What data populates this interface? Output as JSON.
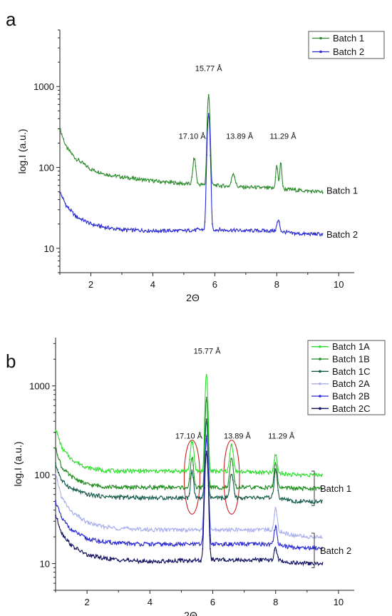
{
  "chart_data": [
    {
      "type": "line",
      "panel_label": "a",
      "xlabel": "2Θ",
      "ylabel": "log.I (a.u.)",
      "xlim": [
        1,
        10.5
      ],
      "ylim": [
        5,
        5000
      ],
      "y_scale": "log",
      "x_ticks": [
        2,
        4,
        6,
        8,
        10
      ],
      "y_ticks": [
        10,
        100,
        1000
      ],
      "grid": false,
      "legend_position": "top-right",
      "series": [
        {
          "name": "Batch 1",
          "color": "#2e8b2e",
          "marker": "dot",
          "base": [
            [
              1.0,
              300
            ],
            [
              1.2,
              180
            ],
            [
              1.5,
              130
            ],
            [
              2.0,
              95
            ],
            [
              2.5,
              82
            ],
            [
              3.0,
              76
            ],
            [
              4.0,
              68
            ],
            [
              5.0,
              63
            ],
            [
              6.0,
              60
            ],
            [
              7.0,
              57
            ],
            [
              8.0,
              55
            ],
            [
              9.0,
              51
            ],
            [
              9.5,
              50
            ]
          ],
          "peaks": [
            {
              "x": 5.34,
              "height": 130,
              "width": 0.06
            },
            {
              "x": 5.8,
              "height": 780,
              "width": 0.05
            },
            {
              "x": 6.6,
              "height": 85,
              "width": 0.07
            },
            {
              "x": 8.0,
              "height": 105,
              "width": 0.045
            },
            {
              "x": 8.13,
              "height": 112,
              "width": 0.045
            }
          ]
        },
        {
          "name": "Batch 2",
          "color": "#2a2ad0",
          "marker": "dot",
          "base": [
            [
              1.0,
              50
            ],
            [
              1.2,
              34
            ],
            [
              1.5,
              25
            ],
            [
              2.0,
              20
            ],
            [
              2.5,
              18
            ],
            [
              3.0,
              17
            ],
            [
              4.0,
              16.5
            ],
            [
              5.0,
              16.5
            ],
            [
              5.5,
              17
            ],
            [
              6.0,
              17
            ],
            [
              7.0,
              16.5
            ],
            [
              8.0,
              16.5
            ],
            [
              8.5,
              15.3
            ],
            [
              9.0,
              15
            ],
            [
              9.5,
              15
            ]
          ],
          "peaks": [
            {
              "x": 5.8,
              "height": 440,
              "width": 0.055
            },
            {
              "x": 8.05,
              "height": 22,
              "width": 0.06
            }
          ]
        }
      ],
      "annotations": [
        {
          "text": "15.77 Å",
          "x": 5.8,
          "y": 1550
        },
        {
          "text": "17.10 Å",
          "x": 5.27,
          "y": 225
        },
        {
          "text": "13.89 Å",
          "x": 6.8,
          "y": 225
        },
        {
          "text": "11.29 Å",
          "x": 8.2,
          "y": 225
        }
      ],
      "right_labels": [
        {
          "text": "Batch 1",
          "y": 52
        },
        {
          "text": "Batch 2",
          "y": 15
        }
      ]
    },
    {
      "type": "line",
      "panel_label": "b",
      "xlabel": "2Θ",
      "ylabel": "log.I (a.u.)",
      "xlim": [
        1,
        10.5
      ],
      "ylim": [
        5,
        3500
      ],
      "y_scale": "log",
      "x_ticks": [
        2,
        4,
        6,
        8,
        10
      ],
      "y_ticks": [
        10,
        100,
        1000
      ],
      "grid": false,
      "legend_position": "top-right",
      "series": [
        {
          "name": "Batch 1A",
          "color": "#33dd33",
          "marker": "dot",
          "base": [
            [
              1.0,
              330
            ],
            [
              1.2,
              200
            ],
            [
              1.5,
              150
            ],
            [
              2.0,
              120
            ],
            [
              2.5,
              112
            ],
            [
              3.0,
              110
            ],
            [
              4.0,
              110
            ],
            [
              5.0,
              110
            ],
            [
              6.0,
              110
            ],
            [
              7.0,
              108
            ],
            [
              8.0,
              105
            ],
            [
              8.6,
              100
            ],
            [
              9.0,
              100
            ],
            [
              9.5,
              100
            ]
          ],
          "peaks": [
            {
              "x": 5.34,
              "height": 240,
              "width": 0.07
            },
            {
              "x": 5.8,
              "height": 1400,
              "width": 0.05
            },
            {
              "x": 6.6,
              "height": 220,
              "width": 0.07
            },
            {
              "x": 8.0,
              "height": 170,
              "width": 0.06
            }
          ]
        },
        {
          "name": "Batch 1B",
          "color": "#1e8c1e",
          "marker": "dot",
          "base": [
            [
              1.0,
              200
            ],
            [
              1.2,
              120
            ],
            [
              1.5,
              95
            ],
            [
              2.0,
              78
            ],
            [
              2.5,
              74
            ],
            [
              3.0,
              72
            ],
            [
              4.0,
              72
            ],
            [
              5.0,
              72
            ],
            [
              6.0,
              72
            ],
            [
              7.0,
              72
            ],
            [
              8.0,
              72
            ],
            [
              8.6,
              70
            ],
            [
              9.0,
              70
            ],
            [
              9.5,
              70
            ]
          ],
          "peaks": [
            {
              "x": 5.34,
              "height": 160,
              "width": 0.06
            },
            {
              "x": 5.8,
              "height": 720,
              "width": 0.05
            },
            {
              "x": 6.6,
              "height": 150,
              "width": 0.07
            },
            {
              "x": 8.0,
              "height": 140,
              "width": 0.06
            }
          ]
        },
        {
          "name": "Batch 1C",
          "color": "#155a4a",
          "marker": "dot",
          "base": [
            [
              1.0,
              130
            ],
            [
              1.2,
              85
            ],
            [
              1.5,
              70
            ],
            [
              2.0,
              60
            ],
            [
              2.5,
              57
            ],
            [
              3.0,
              56
            ],
            [
              4.0,
              55
            ],
            [
              5.0,
              55
            ],
            [
              6.0,
              55
            ],
            [
              7.0,
              55
            ],
            [
              8.0,
              55
            ],
            [
              8.6,
              50
            ],
            [
              9.0,
              50
            ],
            [
              9.5,
              50
            ]
          ],
          "peaks": [
            {
              "x": 5.34,
              "height": 110,
              "width": 0.06
            },
            {
              "x": 5.8,
              "height": 420,
              "width": 0.05
            },
            {
              "x": 6.6,
              "height": 100,
              "width": 0.07
            },
            {
              "x": 8.0,
              "height": 115,
              "width": 0.06
            }
          ]
        },
        {
          "name": "Batch 2A",
          "color": "#aab0ee",
          "marker": "dot",
          "base": [
            [
              1.0,
              100
            ],
            [
              1.2,
              55
            ],
            [
              1.5,
              38
            ],
            [
              2.0,
              29
            ],
            [
              2.5,
              26
            ],
            [
              3.0,
              25
            ],
            [
              4.0,
              24
            ],
            [
              5.0,
              24
            ],
            [
              6.0,
              24
            ],
            [
              7.0,
              24
            ],
            [
              8.0,
              24
            ],
            [
              8.5,
              21
            ],
            [
              9.0,
              20
            ],
            [
              9.5,
              20
            ]
          ],
          "peaks": [
            {
              "x": 5.8,
              "height": 290,
              "width": 0.06
            },
            {
              "x": 8.0,
              "height": 43,
              "width": 0.06
            }
          ]
        },
        {
          "name": "Batch 2B",
          "color": "#2a2ad0",
          "marker": "dot",
          "base": [
            [
              1.0,
              50
            ],
            [
              1.2,
              32
            ],
            [
              1.5,
              24
            ],
            [
              2.0,
              19
            ],
            [
              2.5,
              17.5
            ],
            [
              3.0,
              17
            ],
            [
              4.0,
              16.5
            ],
            [
              5.0,
              16.5
            ],
            [
              6.0,
              16.5
            ],
            [
              7.0,
              16.5
            ],
            [
              8.0,
              16.5
            ],
            [
              8.5,
              15.3
            ],
            [
              9.0,
              15
            ],
            [
              9.5,
              15
            ]
          ],
          "peaks": [
            {
              "x": 5.8,
              "height": 260,
              "width": 0.06
            },
            {
              "x": 8.0,
              "height": 26,
              "width": 0.06
            }
          ]
        },
        {
          "name": "Batch 2C",
          "color": "#101060",
          "marker": "dot",
          "base": [
            [
              1.0,
              35
            ],
            [
              1.2,
              22
            ],
            [
              1.5,
              16
            ],
            [
              2.0,
              12.5
            ],
            [
              2.5,
              11.5
            ],
            [
              3.0,
              11
            ],
            [
              4.0,
              10.5
            ],
            [
              5.0,
              10.8
            ],
            [
              6.0,
              11
            ],
            [
              7.0,
              11
            ],
            [
              8.0,
              11
            ],
            [
              8.5,
              10.2
            ],
            [
              9.0,
              10
            ],
            [
              9.5,
              10
            ]
          ],
          "peaks": [
            {
              "x": 5.8,
              "height": 180,
              "width": 0.06
            },
            {
              "x": 8.0,
              "height": 15,
              "width": 0.06
            }
          ]
        }
      ],
      "annotations": [
        {
          "text": "15.77 Å",
          "x": 5.82,
          "y": 2300
        },
        {
          "text": "17.10 Å",
          "x": 5.24,
          "y": 255
        },
        {
          "text": "13.89 Å",
          "x": 6.78,
          "y": 255
        },
        {
          "text": "11.29 Å",
          "x": 8.18,
          "y": 255
        }
      ],
      "highlight_ellipses": [
        {
          "x": 5.34,
          "y_low": 36,
          "y_high": 245,
          "color": "#cc2222"
        },
        {
          "x": 6.6,
          "y_low": 36,
          "y_high": 245,
          "color": "#cc2222"
        }
      ],
      "right_brackets": [
        {
          "text": "Batch 1",
          "y_low": 45,
          "y_high": 110
        },
        {
          "text": "Batch 2",
          "y_low": 9,
          "y_high": 22
        }
      ]
    }
  ]
}
